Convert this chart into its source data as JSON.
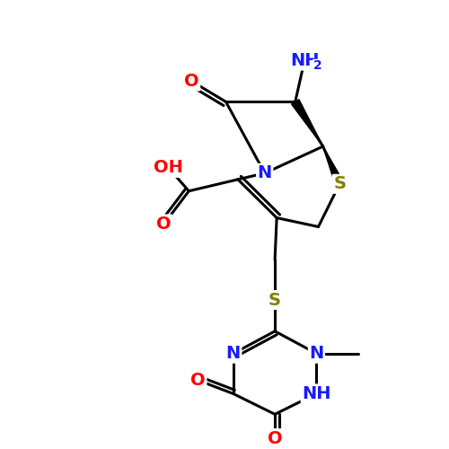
{
  "background_color": "#ffffff",
  "atom_colors": {
    "C": "#000000",
    "N": "#1a1aff",
    "O": "#ff0000",
    "S": "#808000",
    "H": "#000000"
  },
  "bond_color": "#000000",
  "bond_width": 2.2,
  "figsize": [
    5.0,
    5.0
  ],
  "dpi": 100,
  "xlim": [
    0,
    10
  ],
  "ylim": [
    0,
    10
  ],
  "font_size": 14,
  "font_size_sub": 9
}
